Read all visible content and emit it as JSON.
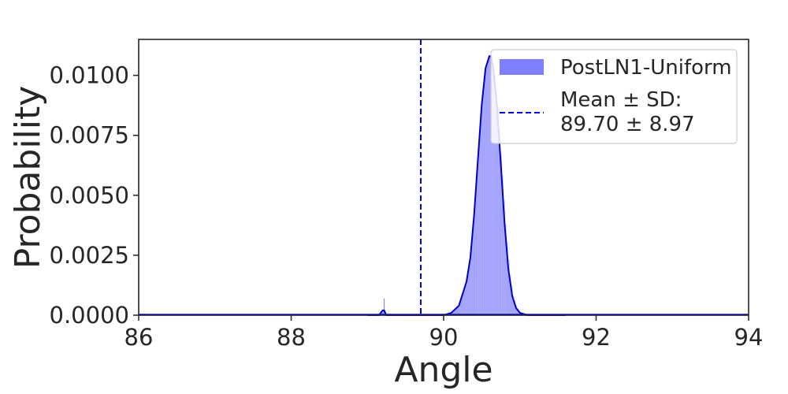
{
  "chart_data": {
    "type": "area",
    "title": "",
    "xlabel": "Angle",
    "ylabel": "Probability",
    "xlim": [
      86,
      94
    ],
    "ylim": [
      0,
      0.0115
    ],
    "grid": false,
    "xticks": [
      86,
      88,
      90,
      92,
      94
    ],
    "xtick_labels": [
      "86",
      "88",
      "90",
      "92",
      "94"
    ],
    "yticks": [
      0.0,
      0.0025,
      0.005,
      0.0075,
      0.01
    ],
    "ytick_labels": [
      "0.0000",
      "0.0025",
      "0.0050",
      "0.0075",
      "0.0100"
    ],
    "legend_position": "top-right",
    "series": [
      {
        "name": "PostLN1-Uniform",
        "kind": "histogram-with-kde",
        "fill_color": "#8080ff",
        "line_color": "#0000cc",
        "x": [
          89.0,
          89.15,
          89.2,
          89.22,
          89.25,
          89.3,
          89.5,
          90.0,
          90.1,
          90.2,
          90.3,
          90.35,
          90.4,
          90.45,
          90.5,
          90.55,
          90.6,
          90.62,
          90.65,
          90.7,
          90.75,
          90.8,
          90.85,
          90.9,
          90.95,
          91.0,
          91.1,
          91.3,
          91.6
        ],
        "y": [
          0.0,
          0.0,
          0.0002,
          0.0002,
          0.0,
          0.0,
          0.0,
          0.0,
          0.0001,
          0.0004,
          0.0014,
          0.0024,
          0.0042,
          0.0065,
          0.0088,
          0.0103,
          0.0108,
          0.0108,
          0.0103,
          0.0087,
          0.0063,
          0.0038,
          0.0019,
          0.0008,
          0.0003,
          0.0001,
          0.0,
          0.0,
          0.0
        ],
        "spike": {
          "x": 89.22,
          "y": 0.0007
        }
      },
      {
        "name": "Mean ± SD:\n89.70 ± 8.97",
        "kind": "vline",
        "x": 89.7,
        "line_color": "#0000ee",
        "dash": true
      }
    ],
    "legend": [
      {
        "label": "PostLN1-Uniform",
        "swatch": "patch"
      },
      {
        "label_lines": [
          "Mean ± SD:",
          "89.70 ± 8.97"
        ],
        "swatch": "dashed-line"
      }
    ]
  }
}
